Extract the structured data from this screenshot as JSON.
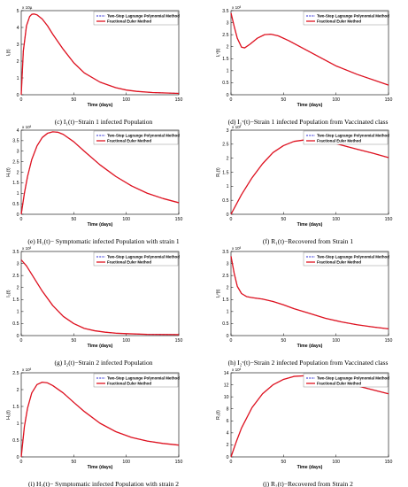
{
  "chart_data": [
    {
      "type": "line",
      "multiplier": "x 10µ",
      "ylabel": "I₁(t)",
      "xlabel": "Time (days)",
      "xlim": [
        0,
        150
      ],
      "ylim": [
        0,
        5
      ],
      "xticks": [
        0,
        50,
        100,
        150
      ],
      "yticks": [
        0,
        1,
        2,
        3,
        4,
        5
      ],
      "legend": [
        "Two-Step Lagrange Polynomial Method",
        "Fractional Euler Method"
      ],
      "legend_position": "top-right",
      "caption": "(c) I₁(t)−Strain 1 infected Population",
      "series": [
        {
          "name": "Two-Step Lagrange Polynomial Method",
          "color": "#2b2bd6",
          "style": "dashed",
          "x": [
            0,
            2,
            5,
            8,
            10,
            12,
            15,
            20,
            25,
            30,
            40,
            50,
            60,
            75,
            90,
            100,
            110,
            125,
            150
          ],
          "y": [
            0,
            2.6,
            4.1,
            4.65,
            4.78,
            4.8,
            4.75,
            4.5,
            4.1,
            3.6,
            2.7,
            1.9,
            1.3,
            0.75,
            0.42,
            0.28,
            0.2,
            0.13,
            0.08
          ]
        },
        {
          "name": "Fractional Euler Method",
          "color": "#e0121e",
          "style": "solid",
          "x": [
            0,
            2,
            5,
            8,
            10,
            12,
            15,
            20,
            25,
            30,
            40,
            50,
            60,
            75,
            90,
            100,
            110,
            125,
            150
          ],
          "y": [
            0,
            2.6,
            4.1,
            4.65,
            4.78,
            4.8,
            4.75,
            4.5,
            4.1,
            3.6,
            2.7,
            1.9,
            1.3,
            0.75,
            0.42,
            0.28,
            0.2,
            0.13,
            0.08
          ]
        }
      ]
    },
    {
      "type": "line",
      "multiplier": "x 10³",
      "ylabel": "I₁ᵛ(t)",
      "xlabel": "Time (days)",
      "xlim": [
        0,
        150
      ],
      "ylim": [
        0,
        3.5
      ],
      "xticks": [
        0,
        50,
        100,
        150
      ],
      "yticks": [
        0,
        0.5,
        1,
        1.5,
        2,
        2.5,
        3,
        3.5
      ],
      "legend": [
        "Two-Step Lagrange Polynomial Method",
        "Fractional Euler Method"
      ],
      "legend_position": "top-right",
      "caption": "(d) I₁ᵛ(t)−Strain 1 infected Population from Vaccinated class",
      "series": [
        {
          "name": "Two-Step Lagrange Polynomial Method",
          "color": "#2b2bd6",
          "style": "dashed",
          "x": [
            0,
            3,
            6,
            10,
            13,
            18,
            25,
            32,
            38,
            45,
            55,
            70,
            85,
            100,
            120,
            150
          ],
          "y": [
            3.4,
            2.85,
            2.35,
            1.98,
            1.95,
            2.1,
            2.35,
            2.5,
            2.52,
            2.45,
            2.25,
            1.9,
            1.55,
            1.2,
            0.85,
            0.4
          ]
        },
        {
          "name": "Fractional Euler Method",
          "color": "#e0121e",
          "style": "solid",
          "x": [
            0,
            3,
            6,
            10,
            13,
            18,
            25,
            32,
            38,
            45,
            55,
            70,
            85,
            100,
            120,
            150
          ],
          "y": [
            3.4,
            2.85,
            2.35,
            1.98,
            1.95,
            2.1,
            2.35,
            2.5,
            2.52,
            2.45,
            2.25,
            1.9,
            1.55,
            1.2,
            0.85,
            0.4
          ]
        }
      ]
    },
    {
      "type": "line",
      "multiplier": "x 10³",
      "ylabel": "H₁(t)",
      "xlabel": "Time (days)",
      "xlim": [
        0,
        150
      ],
      "ylim": [
        0,
        4
      ],
      "xticks": [
        0,
        50,
        100,
        150
      ],
      "yticks": [
        0,
        0.5,
        1,
        1.5,
        2,
        2.5,
        3,
        3.5,
        4
      ],
      "legend": [
        "Two-Step Lagrange Polynomial Method",
        "Fractional Euler Method"
      ],
      "legend_position": "top-right",
      "caption": "(e) H₁(t)− Symptomatic infected Population with strain 1",
      "series": [
        {
          "name": "Two-Step Lagrange Polynomial Method",
          "color": "#2b2bd6",
          "style": "dashed",
          "x": [
            0,
            3,
            6,
            10,
            15,
            20,
            25,
            30,
            35,
            40,
            50,
            60,
            75,
            90,
            105,
            120,
            135,
            150
          ],
          "y": [
            0,
            1.0,
            1.8,
            2.6,
            3.25,
            3.65,
            3.85,
            3.92,
            3.9,
            3.8,
            3.45,
            3.0,
            2.35,
            1.8,
            1.35,
            1.0,
            0.75,
            0.55
          ]
        },
        {
          "name": "Fractional Euler Method",
          "color": "#e0121e",
          "style": "solid",
          "x": [
            0,
            3,
            6,
            10,
            15,
            20,
            25,
            30,
            35,
            40,
            50,
            60,
            75,
            90,
            105,
            120,
            135,
            150
          ],
          "y": [
            0,
            1.0,
            1.8,
            2.6,
            3.25,
            3.65,
            3.85,
            3.92,
            3.9,
            3.8,
            3.45,
            3.0,
            2.35,
            1.8,
            1.35,
            1.0,
            0.75,
            0.55
          ]
        }
      ]
    },
    {
      "type": "line",
      "multiplier": "x 10³",
      "ylabel": "R₁(t)",
      "xlabel": "Time (days)",
      "xlim": [
        0,
        150
      ],
      "ylim": [
        0,
        3
      ],
      "xticks": [
        0,
        50,
        100,
        150
      ],
      "yticks": [
        0,
        0.5,
        1,
        1.5,
        2,
        2.5,
        3
      ],
      "legend": [
        "Two-Step Lagrange Polynomial Method",
        "Fractional Euler Method"
      ],
      "legend_position": "top-right",
      "caption": "(f) R₁(t)−Recovered from Strain 1",
      "series": [
        {
          "name": "Two-Step Lagrange Polynomial Method",
          "color": "#2b2bd6",
          "style": "dashed",
          "x": [
            0,
            5,
            10,
            20,
            30,
            40,
            50,
            60,
            70,
            80,
            90,
            100,
            110,
            120,
            135,
            150
          ],
          "y": [
            0,
            0.35,
            0.7,
            1.3,
            1.8,
            2.2,
            2.45,
            2.6,
            2.65,
            2.65,
            2.6,
            2.52,
            2.42,
            2.32,
            2.18,
            2.02
          ]
        },
        {
          "name": "Fractional Euler Method",
          "color": "#e0121e",
          "style": "solid",
          "x": [
            0,
            5,
            10,
            20,
            30,
            40,
            50,
            60,
            70,
            80,
            90,
            100,
            110,
            120,
            135,
            150
          ],
          "y": [
            0,
            0.35,
            0.7,
            1.3,
            1.8,
            2.2,
            2.45,
            2.6,
            2.65,
            2.65,
            2.6,
            2.52,
            2.42,
            2.32,
            2.18,
            2.02
          ]
        }
      ]
    },
    {
      "type": "line",
      "multiplier": "x 10³",
      "ylabel": "I₂(t)",
      "xlabel": "Time (days)",
      "xlim": [
        0,
        150
      ],
      "ylim": [
        0,
        3.5
      ],
      "xticks": [
        0,
        50,
        100,
        150
      ],
      "yticks": [
        0,
        0.5,
        1,
        1.5,
        2,
        2.5,
        3,
        3.5
      ],
      "legend": [
        "Two-Step Lagrange Polynomial Method",
        "Fractional Euler Method"
      ],
      "legend_position": "top-right",
      "caption": "(g) I₂(t)−Strain 2 infected Population",
      "series": [
        {
          "name": "Two-Step Lagrange Polynomial Method",
          "color": "#2b2bd6",
          "style": "dashed",
          "x": [
            0,
            5,
            10,
            15,
            20,
            30,
            40,
            50,
            60,
            70,
            80,
            90,
            100,
            120,
            150
          ],
          "y": [
            3.15,
            2.9,
            2.55,
            2.2,
            1.85,
            1.25,
            0.8,
            0.5,
            0.3,
            0.2,
            0.14,
            0.1,
            0.08,
            0.05,
            0.04
          ]
        },
        {
          "name": "Fractional Euler Method",
          "color": "#e0121e",
          "style": "solid",
          "x": [
            0,
            5,
            10,
            15,
            20,
            30,
            40,
            50,
            60,
            70,
            80,
            90,
            100,
            120,
            150
          ],
          "y": [
            3.15,
            2.9,
            2.55,
            2.2,
            1.85,
            1.25,
            0.8,
            0.5,
            0.3,
            0.2,
            0.14,
            0.1,
            0.08,
            0.05,
            0.04
          ]
        }
      ]
    },
    {
      "type": "line",
      "multiplier": "x 10³",
      "ylabel": "I₂ᵛ(t)",
      "xlabel": "Time (days)",
      "xlim": [
        0,
        150
      ],
      "ylim": [
        0,
        3.5
      ],
      "xticks": [
        0,
        50,
        100,
        150
      ],
      "yticks": [
        0,
        0.5,
        1,
        1.5,
        2,
        2.5,
        3,
        3.5
      ],
      "legend": [
        "Two-Step Lagrange Polynomial Method",
        "Fractional Euler Method"
      ],
      "legend_position": "top-right",
      "caption": "(h) I₂ᵛ(t)−Strain 2 infected Population from Vaccinated class",
      "series": [
        {
          "name": "Two-Step Lagrange Polynomial Method",
          "color": "#2b2bd6",
          "style": "dashed",
          "x": [
            0,
            3,
            6,
            10,
            15,
            20,
            30,
            40,
            50,
            60,
            75,
            90,
            105,
            120,
            135,
            150
          ],
          "y": [
            3.3,
            2.6,
            2.05,
            1.75,
            1.62,
            1.58,
            1.52,
            1.42,
            1.28,
            1.12,
            0.92,
            0.72,
            0.57,
            0.45,
            0.36,
            0.28
          ]
        },
        {
          "name": "Fractional Euler Method",
          "color": "#e0121e",
          "style": "solid",
          "x": [
            0,
            3,
            6,
            10,
            15,
            20,
            30,
            40,
            50,
            60,
            75,
            90,
            105,
            120,
            135,
            150
          ],
          "y": [
            3.3,
            2.6,
            2.05,
            1.75,
            1.62,
            1.58,
            1.52,
            1.42,
            1.28,
            1.12,
            0.92,
            0.72,
            0.57,
            0.45,
            0.36,
            0.28
          ]
        }
      ]
    },
    {
      "type": "line",
      "multiplier": "x 10³",
      "ylabel": "H₂(t)",
      "xlabel": "Time (days)",
      "xlim": [
        0,
        150
      ],
      "ylim": [
        0,
        2.5
      ],
      "xticks": [
        0,
        50,
        100,
        150
      ],
      "yticks": [
        0,
        0.5,
        1,
        1.5,
        2,
        2.5
      ],
      "legend": [
        "Two-Step Lagrange Polynomial Method",
        "Fractional Euler Method"
      ],
      "legend_position": "top-right",
      "caption": "(i) H₂(t)− Symptomatic infected Population with strain 2",
      "series": [
        {
          "name": "Two-Step Lagrange Polynomial Method",
          "color": "#2b2bd6",
          "style": "dashed",
          "x": [
            0,
            3,
            6,
            10,
            15,
            20,
            25,
            30,
            40,
            50,
            60,
            75,
            90,
            105,
            120,
            135,
            150
          ],
          "y": [
            0,
            0.9,
            1.45,
            1.9,
            2.15,
            2.22,
            2.2,
            2.12,
            1.9,
            1.62,
            1.35,
            1.0,
            0.75,
            0.58,
            0.47,
            0.4,
            0.35
          ]
        },
        {
          "name": "Fractional Euler Method",
          "color": "#e0121e",
          "style": "solid",
          "x": [
            0,
            3,
            6,
            10,
            15,
            20,
            25,
            30,
            40,
            50,
            60,
            75,
            90,
            105,
            120,
            135,
            150
          ],
          "y": [
            0,
            0.9,
            1.45,
            1.9,
            2.15,
            2.22,
            2.2,
            2.12,
            1.9,
            1.62,
            1.35,
            1.0,
            0.75,
            0.58,
            0.47,
            0.4,
            0.35
          ]
        }
      ]
    },
    {
      "type": "line",
      "multiplier": "x 10³",
      "ylabel": "R₂(t)",
      "xlabel": "Time (days)",
      "xlim": [
        0,
        150
      ],
      "ylim": [
        0,
        14
      ],
      "xticks": [
        0,
        50,
        100,
        150
      ],
      "yticks": [
        0,
        2,
        4,
        6,
        8,
        10,
        12,
        14
      ],
      "legend": [
        "Two-Step Lagrange Polynomial Method",
        "Fractional Euler Method"
      ],
      "legend_position": "top-right",
      "caption": "(j) R₂(t)−Recovered from Strain 2",
      "series": [
        {
          "name": "Two-Step Lagrange Polynomial Method",
          "color": "#2b2bd6",
          "style": "dashed",
          "x": [
            0,
            5,
            10,
            20,
            30,
            40,
            50,
            60,
            70,
            80,
            90,
            100,
            110,
            125,
            150
          ],
          "y": [
            0,
            2.5,
            4.8,
            8.2,
            10.5,
            12.0,
            12.9,
            13.4,
            13.5,
            13.4,
            13.1,
            12.7,
            12.3,
            11.6,
            10.5
          ]
        },
        {
          "name": "Fractional Euler Method",
          "color": "#e0121e",
          "style": "solid",
          "x": [
            0,
            5,
            10,
            20,
            30,
            40,
            50,
            60,
            70,
            80,
            90,
            100,
            110,
            125,
            150
          ],
          "y": [
            0,
            2.5,
            4.8,
            8.2,
            10.5,
            12.0,
            12.9,
            13.4,
            13.5,
            13.4,
            13.1,
            12.7,
            12.3,
            11.6,
            10.5
          ]
        }
      ]
    }
  ]
}
